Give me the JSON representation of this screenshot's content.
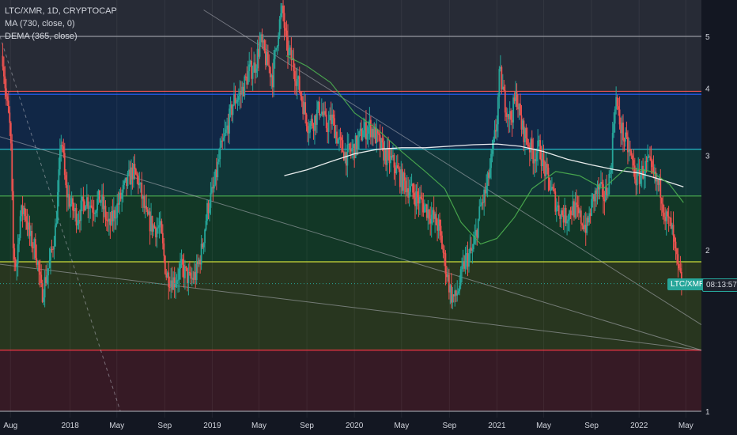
{
  "legend": {
    "symbol_line": "LTC/XMR, 1D, CRYPTOCAP",
    "ma_label": "MA (730, close, 0)",
    "dema_label": "DEMA (365, close)"
  },
  "price_tag": {
    "symbol": "LTC/XMR",
    "countdown": "08:13:57",
    "color": "#26a69a"
  },
  "chart_data": {
    "type": "candlestick",
    "symbol": "LTC/XMR",
    "interval": "1D",
    "source": "CRYPTOCAP",
    "y_scale": "log",
    "ylim": [
      1,
      6
    ],
    "y_ticks": [
      {
        "value": 1,
        "label": "1"
      },
      {
        "value": 2,
        "label": "2"
      },
      {
        "value": 3,
        "label": "3"
      },
      {
        "value": 4,
        "label": "4"
      },
      {
        "value": 5,
        "label": "5"
      }
    ],
    "x_range": [
      "2017-07-05",
      "2022-06-10"
    ],
    "x_ticks": [
      {
        "date": "2017-08-01",
        "label": "Aug"
      },
      {
        "date": "2018-01-01",
        "label": "2018"
      },
      {
        "date": "2018-05-01",
        "label": "May"
      },
      {
        "date": "2018-09-01",
        "label": "Sep"
      },
      {
        "date": "2019-01-01",
        "label": "2019"
      },
      {
        "date": "2019-05-01",
        "label": "May"
      },
      {
        "date": "2019-09-01",
        "label": "Sep"
      },
      {
        "date": "2020-01-01",
        "label": "2020"
      },
      {
        "date": "2020-05-01",
        "label": "May"
      },
      {
        "date": "2020-09-01",
        "label": "Sep"
      },
      {
        "date": "2021-01-01",
        "label": "2021"
      },
      {
        "date": "2021-05-01",
        "label": "May"
      },
      {
        "date": "2021-09-01",
        "label": "Sep"
      },
      {
        "date": "2022-01-01",
        "label": "2022"
      },
      {
        "date": "2022-05-01",
        "label": "May"
      }
    ],
    "last_price": 1.73,
    "price_path": [
      [
        "2017-07-12",
        4.6
      ],
      [
        "2017-07-20",
        3.9
      ],
      [
        "2017-08-01",
        3.3
      ],
      [
        "2017-08-08",
        2.0
      ],
      [
        "2017-08-16",
        1.85
      ],
      [
        "2017-08-25",
        2.3
      ],
      [
        "2017-09-05",
        2.4
      ],
      [
        "2017-09-20",
        2.1
      ],
      [
        "2017-10-05",
        2.0
      ],
      [
        "2017-10-20",
        1.65
      ],
      [
        "2017-11-10",
        1.9
      ],
      [
        "2017-11-25",
        2.2
      ],
      [
        "2017-12-10",
        3.3
      ],
      [
        "2017-12-20",
        2.6
      ],
      [
        "2018-01-05",
        2.4
      ],
      [
        "2018-01-20",
        2.3
      ],
      [
        "2018-02-10",
        2.5
      ],
      [
        "2018-03-01",
        2.4
      ],
      [
        "2018-03-20",
        2.5
      ],
      [
        "2018-04-10",
        2.2
      ],
      [
        "2018-05-01",
        2.4
      ],
      [
        "2018-05-20",
        2.6
      ],
      [
        "2018-06-10",
        2.8
      ],
      [
        "2018-06-25",
        2.7
      ],
      [
        "2018-07-15",
        2.3
      ],
      [
        "2018-08-05",
        2.2
      ],
      [
        "2018-08-20",
        2.2
      ],
      [
        "2018-09-05",
        1.8
      ],
      [
        "2018-09-25",
        1.75
      ],
      [
        "2018-10-15",
        1.85
      ],
      [
        "2018-11-05",
        1.75
      ],
      [
        "2018-11-20",
        1.8
      ],
      [
        "2018-12-05",
        2.0
      ],
      [
        "2018-12-20",
        2.4
      ],
      [
        "2019-01-05",
        2.6
      ],
      [
        "2019-01-20",
        3.0
      ],
      [
        "2019-02-05",
        3.3
      ],
      [
        "2019-02-25",
        3.8
      ],
      [
        "2019-03-15",
        3.9
      ],
      [
        "2019-04-05",
        4.3
      ],
      [
        "2019-04-20",
        4.4
      ],
      [
        "2019-05-05",
        4.9
      ],
      [
        "2019-05-20",
        4.5
      ],
      [
        "2019-06-05",
        4.2
      ],
      [
        "2019-06-20",
        5.2
      ],
      [
        "2019-07-01",
        5.6
      ],
      [
        "2019-07-10",
        4.8
      ],
      [
        "2019-07-25",
        4.5
      ],
      [
        "2019-08-05",
        4.2
      ],
      [
        "2019-08-20",
        3.8
      ],
      [
        "2019-09-05",
        3.4
      ],
      [
        "2019-09-20",
        3.5
      ],
      [
        "2019-10-05",
        3.7
      ],
      [
        "2019-10-20",
        3.4
      ],
      [
        "2019-11-05",
        3.5
      ],
      [
        "2019-11-20",
        3.2
      ],
      [
        "2019-12-10",
        3.0
      ],
      [
        "2020-01-01",
        3.1
      ],
      [
        "2020-01-20",
        3.3
      ],
      [
        "2020-02-10",
        3.4
      ],
      [
        "2020-03-01",
        3.2
      ],
      [
        "2020-03-20",
        3.0
      ],
      [
        "2020-04-10",
        2.9
      ],
      [
        "2020-05-01",
        2.7
      ],
      [
        "2020-05-20",
        2.6
      ],
      [
        "2020-06-10",
        2.5
      ],
      [
        "2020-07-01",
        2.4
      ],
      [
        "2020-07-20",
        2.3
      ],
      [
        "2020-08-05",
        2.2
      ],
      [
        "2020-08-20",
        1.9
      ],
      [
        "2020-09-05",
        1.65
      ],
      [
        "2020-09-15",
        1.62
      ],
      [
        "2020-09-25",
        1.7
      ],
      [
        "2020-10-10",
        1.9
      ],
      [
        "2020-11-01",
        2.0
      ],
      [
        "2020-11-20",
        2.4
      ],
      [
        "2020-12-05",
        2.6
      ],
      [
        "2020-12-20",
        3.0
      ],
      [
        "2021-01-01",
        3.5
      ],
      [
        "2021-01-08",
        4.3
      ],
      [
        "2021-01-20",
        3.8
      ],
      [
        "2021-02-05",
        3.5
      ],
      [
        "2021-02-20",
        3.9
      ],
      [
        "2021-03-05",
        3.4
      ],
      [
        "2021-03-20",
        3.2
      ],
      [
        "2021-04-05",
        3.0
      ],
      [
        "2021-04-20",
        3.1
      ],
      [
        "2021-05-05",
        2.8
      ],
      [
        "2021-05-20",
        2.6
      ],
      [
        "2021-06-05",
        2.4
      ],
      [
        "2021-06-25",
        2.3
      ],
      [
        "2021-07-15",
        2.4
      ],
      [
        "2021-08-01",
        2.3
      ],
      [
        "2021-08-20",
        2.2
      ],
      [
        "2021-09-05",
        2.5
      ],
      [
        "2021-09-20",
        2.6
      ],
      [
        "2021-10-05",
        2.5
      ],
      [
        "2021-10-20",
        2.8
      ],
      [
        "2021-11-01",
        3.9
      ],
      [
        "2021-11-10",
        3.5
      ],
      [
        "2021-11-25",
        3.2
      ],
      [
        "2021-12-10",
        3.0
      ],
      [
        "2021-12-25",
        2.7
      ],
      [
        "2022-01-10",
        2.8
      ],
      [
        "2022-01-25",
        2.9
      ],
      [
        "2022-02-10",
        2.7
      ],
      [
        "2022-02-25",
        2.6
      ],
      [
        "2022-03-10",
        2.3
      ],
      [
        "2022-03-25",
        2.2
      ],
      [
        "2022-04-05",
        1.95
      ],
      [
        "2022-04-12",
        1.82
      ],
      [
        "2022-04-20",
        1.73
      ]
    ],
    "ma_730_path": [
      [
        "2019-07-05",
        2.75
      ],
      [
        "2019-09-01",
        2.82
      ],
      [
        "2019-11-01",
        2.92
      ],
      [
        "2020-01-01",
        3.02
      ],
      [
        "2020-03-01",
        3.08
      ],
      [
        "2020-05-01",
        3.1
      ],
      [
        "2020-07-01",
        3.1
      ],
      [
        "2020-09-01",
        3.12
      ],
      [
        "2020-11-01",
        3.14
      ],
      [
        "2021-01-01",
        3.15
      ],
      [
        "2021-03-01",
        3.12
      ],
      [
        "2021-05-01",
        3.05
      ],
      [
        "2021-07-01",
        2.95
      ],
      [
        "2021-09-01",
        2.88
      ],
      [
        "2021-11-01",
        2.82
      ],
      [
        "2022-01-01",
        2.78
      ],
      [
        "2022-03-01",
        2.7
      ],
      [
        "2022-04-25",
        2.62
      ]
    ],
    "dema_365_path": [
      [
        "2019-07-10",
        4.6
      ],
      [
        "2019-09-01",
        4.4
      ],
      [
        "2019-11-01",
        4.1
      ],
      [
        "2020-01-01",
        3.6
      ],
      [
        "2020-03-01",
        3.35
      ],
      [
        "2020-05-01",
        3.05
      ],
      [
        "2020-07-01",
        2.8
      ],
      [
        "2020-08-20",
        2.6
      ],
      [
        "2020-10-01",
        2.25
      ],
      [
        "2020-11-20",
        2.05
      ],
      [
        "2021-01-01",
        2.1
      ],
      [
        "2021-02-15",
        2.3
      ],
      [
        "2021-04-01",
        2.6
      ],
      [
        "2021-06-01",
        2.8
      ],
      [
        "2021-08-01",
        2.75
      ],
      [
        "2021-10-01",
        2.6
      ],
      [
        "2021-12-01",
        2.85
      ],
      [
        "2022-02-01",
        2.8
      ],
      [
        "2022-03-20",
        2.65
      ],
      [
        "2022-04-25",
        2.45
      ]
    ],
    "horizontal_levels": [
      {
        "value": 5.0,
        "color": "#9598a1"
      },
      {
        "value": 3.95,
        "color": "#ef5350"
      },
      {
        "value": 3.9,
        "color": "#2962ff"
      },
      {
        "value": 3.08,
        "color": "#26c6da"
      },
      {
        "value": 2.52,
        "color": "#4caf50"
      },
      {
        "value": 1.9,
        "color": "#cddc39"
      },
      {
        "value": 1.3,
        "color": "#f23645"
      },
      {
        "value": 1.0,
        "color": "#9598a1"
      }
    ],
    "zones": [
      {
        "from": 3.95,
        "to": 6.0,
        "color": "#2a2e39"
      },
      {
        "from": 3.08,
        "to": 3.95,
        "color": "#12294a"
      },
      {
        "from": 2.52,
        "to": 3.08,
        "color": "#113a3a"
      },
      {
        "from": 1.9,
        "to": 2.52,
        "color": "#133b27"
      },
      {
        "from": 1.3,
        "to": 1.9,
        "color": "#2b3a1f"
      },
      {
        "from": 1.0,
        "to": 1.3,
        "color": "#3b1b26"
      }
    ],
    "trendlines": [
      {
        "start": [
          "2018-12-10",
          5.6
        ],
        "end": [
          "2022-06-10",
          1.45
        ],
        "style": "solid"
      },
      {
        "start": [
          "2017-07-05",
          3.25
        ],
        "end": [
          "2022-06-10",
          1.3
        ],
        "style": "solid"
      },
      {
        "start": [
          "2017-07-05",
          1.88
        ],
        "end": [
          "2022-06-10",
          1.3
        ],
        "style": "solid"
      },
      {
        "start": [
          "2017-07-05",
          5.0
        ],
        "end": [
          "2018-05-10",
          1.0
        ],
        "style": "dashed"
      }
    ],
    "grid": true,
    "colors": {
      "up": "#26a69a",
      "down": "#ef5350",
      "ma": "#ffffff",
      "dema": "#4caf50",
      "trendline": "#b2b5be",
      "background": "#131722",
      "axis_text": "#d1d4dc"
    }
  }
}
